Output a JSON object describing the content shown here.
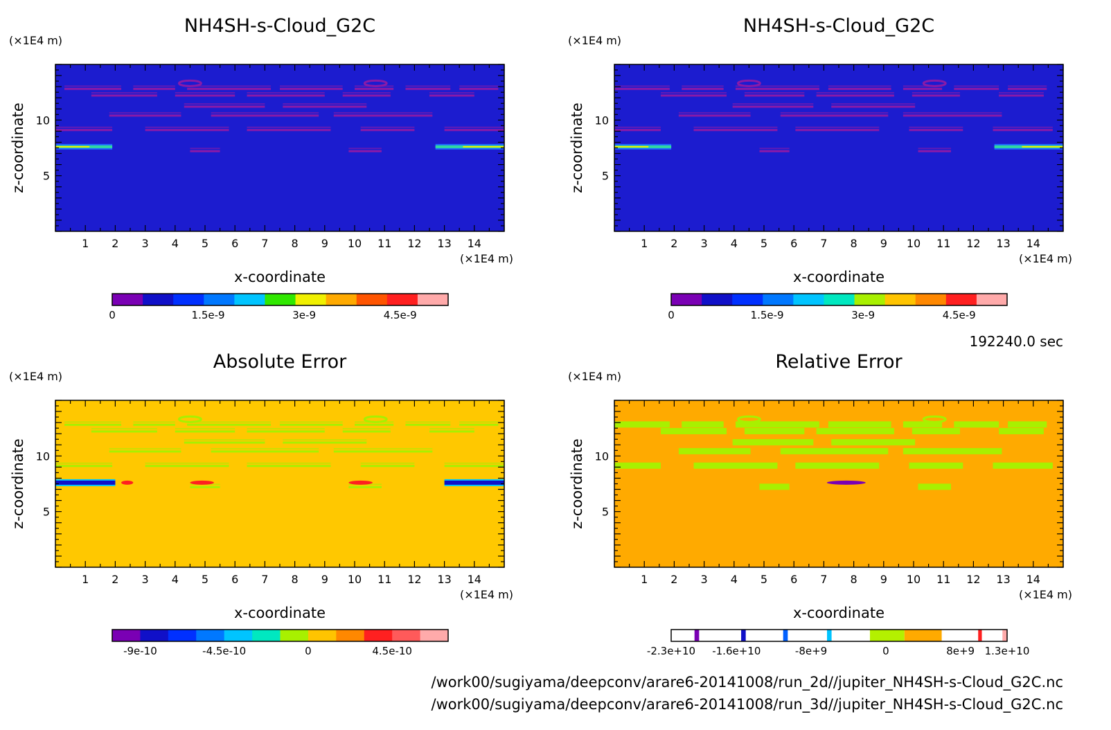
{
  "footer": {
    "time": "192240.0 sec",
    "path1": "/work00/sugiyama/deepconv/arare6-20141008/run_2d//jupiter_NH4SH-s-Cloud_G2C.nc",
    "path2": "/work00/sugiyama/deepconv/arare6-20141008/run_3d//jupiter_NH4SH-s-Cloud_G2C.nc"
  },
  "chart_data": [
    {
      "type": "heatmap",
      "title": "NH4SH-s-Cloud_G2C",
      "xlabel": "x-coordinate",
      "ylabel": "z-coordinate",
      "x_unit": "(×1E4 m)",
      "y_unit": "(×1E4 m)",
      "xticks": [
        "1",
        "2",
        "3",
        "4",
        "5",
        "6",
        "7",
        "8",
        "9",
        "10",
        "11",
        "12",
        "13",
        "14"
      ],
      "yticks": [
        "5",
        "10"
      ],
      "xlim": [
        0,
        15
      ],
      "ylim": [
        0,
        15
      ],
      "background_color": "#1c1ccf",
      "features": [
        {
          "x": [
            0,
            1.9
          ],
          "z": 7.6,
          "description": "cloud layer band"
        },
        {
          "x": [
            12.7,
            15
          ],
          "z": 7.6,
          "description": "cloud layer band"
        }
      ],
      "colorbar": {
        "colors": [
          "#7a00b4",
          "#1010c8",
          "#0030ff",
          "#0078ff",
          "#00c4ff",
          "#30e800",
          "#f0f000",
          "#ffaa00",
          "#ff5500",
          "#ff2020",
          "#ffaaaa"
        ],
        "tick_labels": [
          "0",
          "1.5e-9",
          "3e-9",
          "4.5e-9"
        ],
        "tick_values": [
          0,
          1.5e-09,
          3e-09,
          4.5e-09
        ],
        "range": [
          0,
          5.25e-09
        ]
      }
    },
    {
      "type": "heatmap",
      "title": "NH4SH-s-Cloud_G2C",
      "xlabel": "x-coordinate",
      "ylabel": "z-coordinate",
      "x_unit": "(×1E4 m)",
      "y_unit": "(×1E4 m)",
      "xticks": [
        "1",
        "2",
        "3",
        "4",
        "5",
        "6",
        "7",
        "8",
        "9",
        "10",
        "11",
        "12",
        "13",
        "14"
      ],
      "yticks": [
        "5",
        "10"
      ],
      "xlim": [
        0,
        15
      ],
      "ylim": [
        0,
        15
      ],
      "background_color": "#1c1ccf",
      "features": [
        {
          "x": [
            0,
            1.9
          ],
          "z": 7.6,
          "description": "cloud layer band"
        },
        {
          "x": [
            12.7,
            15
          ],
          "z": 7.6,
          "description": "cloud layer band"
        }
      ],
      "colorbar": {
        "colors": [
          "#7a00b4",
          "#1010c8",
          "#0030ff",
          "#0078ff",
          "#00c4ff",
          "#00e8c0",
          "#a8f000",
          "#ffc400",
          "#ff8800",
          "#ff2020",
          "#ffaaaa"
        ],
        "tick_labels": [
          "0",
          "1.5e-9",
          "3e-9",
          "4.5e-9"
        ],
        "tick_values": [
          0,
          1.5e-09,
          3e-09,
          4.5e-09
        ],
        "range": [
          0,
          5.25e-09
        ]
      }
    },
    {
      "type": "heatmap",
      "title": "Absolute Error",
      "xlabel": "x-coordinate",
      "ylabel": "z-coordinate",
      "x_unit": "(×1E4 m)",
      "y_unit": "(×1E4 m)",
      "xticks": [
        "1",
        "2",
        "3",
        "4",
        "5",
        "6",
        "7",
        "8",
        "9",
        "10",
        "11",
        "12",
        "13",
        "14"
      ],
      "yticks": [
        "5",
        "10"
      ],
      "xlim": [
        0,
        15
      ],
      "ylim": [
        0,
        15
      ],
      "background_color": "#ffc800",
      "colorbar": {
        "colors": [
          "#7a00b4",
          "#1010c8",
          "#0030ff",
          "#0078ff",
          "#00c4ff",
          "#00e8c0",
          "#a8f000",
          "#ffc400",
          "#ff8800",
          "#ff2020",
          "#ff5a5a",
          "#ffaaaa"
        ],
        "tick_labels": [
          "-9e-10",
          "-4.5e-10",
          "0",
          "4.5e-10"
        ],
        "tick_values": [
          -9e-10,
          -4.5e-10,
          0,
          4.5e-10
        ],
        "range": [
          -1.05e-09,
          7.5e-10
        ]
      }
    },
    {
      "type": "heatmap",
      "title": "Relative Error",
      "xlabel": "x-coordinate",
      "ylabel": "z-coordinate",
      "x_unit": "(×1E4 m)",
      "y_unit": "(×1E4 m)",
      "xticks": [
        "1",
        "2",
        "3",
        "4",
        "5",
        "6",
        "7",
        "8",
        "9",
        "10",
        "11",
        "12",
        "13",
        "14"
      ],
      "yticks": [
        "5",
        "10"
      ],
      "xlim": [
        0,
        15
      ],
      "ylim": [
        0,
        15
      ],
      "background_color": "#ffaa00",
      "colorbar": {
        "tick_labels": [
          "-2.3e+10",
          "-1.6e+10",
          "-8e+9",
          "0",
          "8e+9",
          "1.3e+10"
        ],
        "tick_values": [
          -23000000000.0,
          -16000000000.0,
          -8000000000.0,
          0,
          8000000000.0,
          13000000000.0
        ],
        "range": [
          -23000000000.0,
          13000000000.0
        ],
        "segments": [
          {
            "from": -23000000000.0,
            "to": -20500000000.0,
            "color": "#ffffff"
          },
          {
            "from": -20500000000.0,
            "to": -20000000000.0,
            "color": "#7a00b4"
          },
          {
            "from": -20000000000.0,
            "to": -15500000000.0,
            "color": "#ffffff"
          },
          {
            "from": -15500000000.0,
            "to": -15000000000.0,
            "color": "#1010c8"
          },
          {
            "from": -15000000000.0,
            "to": -11000000000.0,
            "color": "#ffffff"
          },
          {
            "from": -11000000000.0,
            "to": -10500000000.0,
            "color": "#0060ff"
          },
          {
            "from": -10500000000.0,
            "to": -6300000000.0,
            "color": "#ffffff"
          },
          {
            "from": -6300000000.0,
            "to": -5800000000.0,
            "color": "#00c4ff"
          },
          {
            "from": -5800000000.0,
            "to": -1700000000.0,
            "color": "#ffffff"
          },
          {
            "from": -1700000000.0,
            "to": 2000000000.0,
            "color": "#b4f000"
          },
          {
            "from": 2000000000.0,
            "to": 6000000000.0,
            "color": "#ffaa00"
          },
          {
            "from": 6000000000.0,
            "to": 9900000000.0,
            "color": "#ffffff"
          },
          {
            "from": 9900000000.0,
            "to": 10300000000.0,
            "color": "#ff2020"
          },
          {
            "from": 10300000000.0,
            "to": 12500000000.0,
            "color": "#ffffff"
          },
          {
            "from": 12500000000.0,
            "to": 13000000000.0,
            "color": "#ffaaaa"
          }
        ]
      }
    }
  ]
}
